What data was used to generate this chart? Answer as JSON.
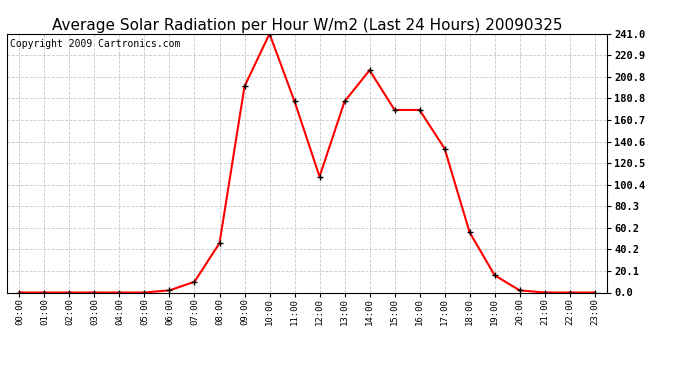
{
  "title": "Average Solar Radiation per Hour W/m2 (Last 24 Hours) 20090325",
  "copyright": "Copyright 2009 Cartronics.com",
  "hours": [
    "00:00",
    "01:00",
    "02:00",
    "03:00",
    "04:00",
    "05:00",
    "06:00",
    "07:00",
    "08:00",
    "09:00",
    "10:00",
    "11:00",
    "12:00",
    "13:00",
    "14:00",
    "15:00",
    "16:00",
    "17:00",
    "18:00",
    "19:00",
    "20:00",
    "21:00",
    "22:00",
    "23:00"
  ],
  "values": [
    0.0,
    0.0,
    0.0,
    0.0,
    0.0,
    0.0,
    2.0,
    10.0,
    46.0,
    192.0,
    241.0,
    178.0,
    108.0,
    178.0,
    207.0,
    170.0,
    170.0,
    134.0,
    56.0,
    16.0,
    2.0,
    0.0,
    0.0,
    0.0
  ],
  "ymax": 241.0,
  "yticks": [
    0.0,
    20.1,
    40.2,
    60.2,
    80.3,
    100.4,
    120.5,
    140.6,
    160.7,
    180.8,
    200.8,
    220.9,
    241.0
  ],
  "line_color": "#ff0000",
  "marker_color": "#000000",
  "bg_color": "#ffffff",
  "grid_color": "#c8c8c8",
  "title_fontsize": 11,
  "copyright_fontsize": 7,
  "figwidth": 6.9,
  "figheight": 3.75,
  "dpi": 100
}
